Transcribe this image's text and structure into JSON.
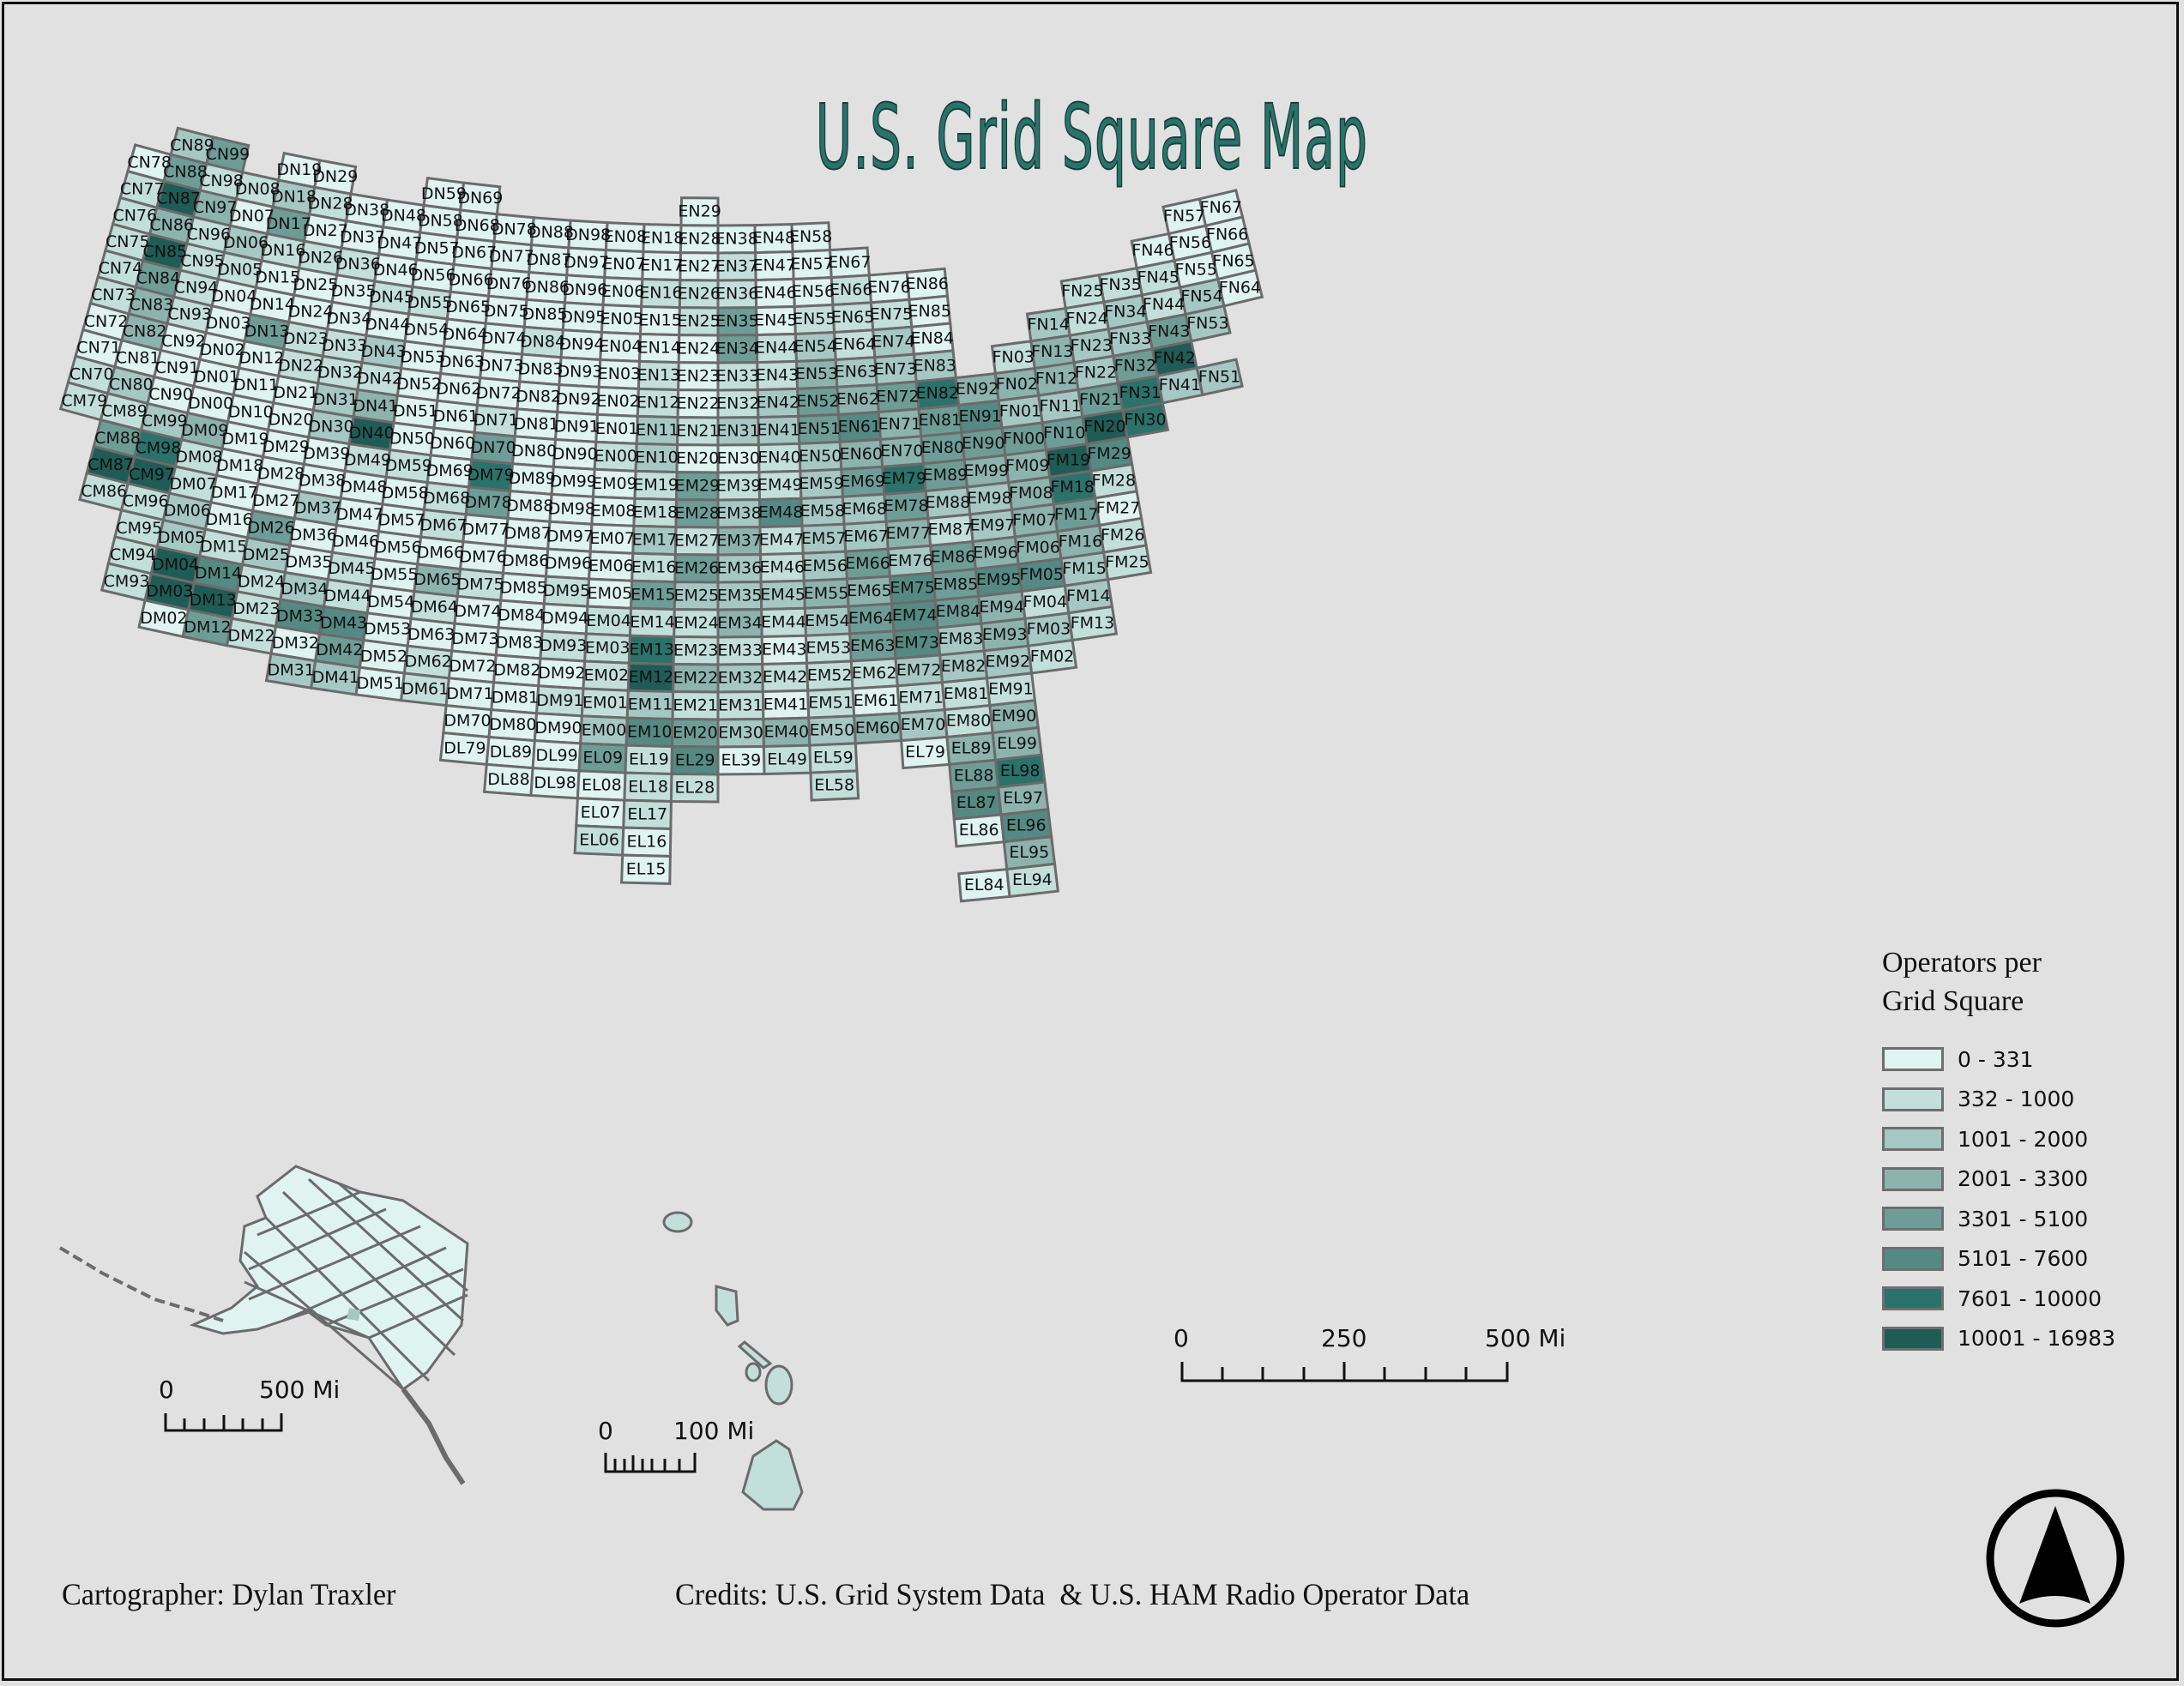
{
  "title": "U.S. Grid Square Map",
  "legend": {
    "title_line1": "Operators per",
    "title_line2": "Grid Square",
    "classes": [
      {
        "label": "0 - 331",
        "color": "#dff3f0"
      },
      {
        "label": "332 - 1000",
        "color": "#c3dfdb"
      },
      {
        "label": "1001 - 2000",
        "color": "#a6c8c4"
      },
      {
        "label": "2001 - 3300",
        "color": "#8db3ae"
      },
      {
        "label": "3301 - 5100",
        "color": "#6e9d97"
      },
      {
        "label": "5101 - 7600",
        "color": "#548a83"
      },
      {
        "label": "7601 - 10000",
        "color": "#2a726a"
      },
      {
        "label": "10001 - 16983",
        "color": "#1f5c56"
      }
    ]
  },
  "scale_bars": {
    "main": {
      "labels": [
        "0",
        "250",
        "500 Mi"
      ]
    },
    "alaska": {
      "labels": [
        "0",
        "500 Mi"
      ]
    },
    "hawaii": {
      "labels": [
        "0",
        "100 Mi"
      ]
    }
  },
  "credits": {
    "cartographer": "Cartographer: Dylan Traxler",
    "sources": "Credits: U.S. Grid System Data  & U.S. HAM Radio Operator Data"
  },
  "north_arrow": {
    "icon": "north-arrow-icon"
  },
  "chart_data": {
    "type": "heatmap",
    "title": "U.S. Grid Square Map",
    "legend_title": "Operators per Grid Square",
    "classes": [
      "0 - 331",
      "332 - 1000",
      "1001 - 2000",
      "2001 - 3300",
      "3301 - 5100",
      "5101 - 7600",
      "7601 - 10000",
      "10001 - 16983"
    ],
    "note": "value = class index (0-7) into classes for each Maidenhead grid square",
    "grid_squares": {
      "CN89": 2,
      "CN99": 4,
      "CN88": 4,
      "CN78": 0,
      "CN98": 1,
      "CN77": 1,
      "CN87": 7,
      "CN97": 3,
      "CN76": 1,
      "CN86": 3,
      "CN96": 1,
      "CN75": 1,
      "CN85": 7,
      "CN95": 1,
      "CN74": 1,
      "CN84": 4,
      "CN94": 1,
      "CN73": 1,
      "CN83": 3,
      "CN93": 1,
      "CN72": 0,
      "CN82": 3,
      "CN92": 0,
      "CN71": 0,
      "CN81": 0,
      "CN91": 0,
      "CN70": 1,
      "CN80": 2,
      "CN90": 0,
      "CM79": 1,
      "CM89": 1,
      "CM99": 2,
      "CM88": 4,
      "CM98": 6,
      "CM87": 7,
      "CM97": 7,
      "CM86": 1,
      "CM96": 1,
      "CM95": 1,
      "CM94": 1,
      "CM93": 1,
      "DN08": 1,
      "DN18": 2,
      "DN19": 0,
      "DN29": 0,
      "DN28": 1,
      "DN38": 0,
      "DN48": 0,
      "DN58": 0,
      "DN59": 0,
      "DN68": 0,
      "DN69": 0,
      "DN78": 0,
      "DN88": 0,
      "DN98": 0,
      "DN07": 0,
      "DN17": 4,
      "DN27": 0,
      "DN37": 0,
      "DN47": 0,
      "DN57": 0,
      "DN67": 0,
      "DN77": 0,
      "DN87": 0,
      "DN97": 0,
      "DN06": 2,
      "DN16": 1,
      "DN26": 1,
      "DN36": 1,
      "DN46": 0,
      "DN56": 0,
      "DN66": 0,
      "DN76": 0,
      "DN86": 0,
      "DN96": 0,
      "DN05": 1,
      "DN15": 0,
      "DN25": 0,
      "DN35": 0,
      "DN45": 1,
      "DN55": 1,
      "DN65": 0,
      "DN75": 0,
      "DN85": 0,
      "DN95": 0,
      "DN04": 0,
      "DN14": 0,
      "DN24": 0,
      "DN34": 0,
      "DN44": 0,
      "DN54": 0,
      "DN64": 0,
      "DN74": 0,
      "DN84": 1,
      "DN94": 0,
      "DN03": 0,
      "DN13": 4,
      "DN23": 1,
      "DN33": 1,
      "DN43": 2,
      "DN53": 0,
      "DN63": 0,
      "DN73": 0,
      "DN83": 0,
      "DN93": 0,
      "DN02": 0,
      "DN12": 0,
      "DN22": 1,
      "DN32": 1,
      "DN42": 1,
      "DN52": 0,
      "DN62": 0,
      "DN72": 0,
      "DN82": 0,
      "DN92": 0,
      "DN01": 0,
      "DN11": 0,
      "DN21": 0,
      "DN31": 2,
      "DN41": 3,
      "DN51": 0,
      "DN61": 0,
      "DN71": 1,
      "DN81": 0,
      "DN91": 0,
      "DN00": 0,
      "DN10": 0,
      "DN20": 0,
      "DN30": 2,
      "DN40": 7,
      "DN50": 0,
      "DN60": 0,
      "DN70": 4,
      "DN80": 0,
      "DN90": 0,
      "DM09": 3,
      "DM19": 0,
      "DM29": 0,
      "DM39": 0,
      "DM49": 1,
      "DM59": 1,
      "DM69": 0,
      "DM79": 6,
      "DM89": 0,
      "DM99": 0,
      "DM08": 1,
      "DM18": 0,
      "DM28": 0,
      "DM38": 0,
      "DM48": 0,
      "DM58": 0,
      "DM68": 1,
      "DM78": 4,
      "DM88": 0,
      "DM98": 0,
      "DM07": 1,
      "DM17": 0,
      "DM27": 0,
      "DM37": 2,
      "DM47": 0,
      "DM57": 0,
      "DM67": 1,
      "DM77": 0,
      "DM87": 0,
      "DM97": 0,
      "DM06": 2,
      "DM16": 0,
      "DM26": 4,
      "DM36": 0,
      "DM46": 0,
      "DM56": 0,
      "DM66": 0,
      "DM76": 0,
      "DM86": 0,
      "DM96": 0,
      "DM05": 2,
      "DM15": 1,
      "DM25": 2,
      "DM35": 0,
      "DM45": 1,
      "DM55": 0,
      "DM65": 3,
      "DM75": 1,
      "DM85": 0,
      "DM95": 1,
      "DM04": 7,
      "DM14": 5,
      "DM24": 1,
      "DM34": 2,
      "DM44": 1,
      "DM54": 0,
      "DM64": 1,
      "DM74": 0,
      "DM84": 0,
      "DM94": 0,
      "DM03": 7,
      "DM13": 7,
      "DM23": 1,
      "DM33": 5,
      "DM43": 5,
      "DM53": 0,
      "DM63": 0,
      "DM73": 0,
      "DM83": 0,
      "DM93": 1,
      "DM02": 0,
      "DM12": 4,
      "DM22": 1,
      "DM32": 0,
      "DM42": 4,
      "DM52": 0,
      "DM62": 1,
      "DM72": 0,
      "DM82": 0,
      "DM92": 0,
      "DM31": 2,
      "DM41": 2,
      "DM51": 0,
      "DM61": 1,
      "DM71": 0,
      "DM81": 0,
      "DM91": 1,
      "DM70": 0,
      "DM80": 0,
      "DM90": 0,
      "DL79": 0,
      "DL89": 0,
      "DL88": 0,
      "DL99": 0,
      "DL98": 0,
      "EN08": 0,
      "EN18": 0,
      "EN28": 0,
      "EN29": 0,
      "EN38": 0,
      "EN48": 0,
      "EN58": 0,
      "EN47": 0,
      "EN57": 0,
      "EN67": 0,
      "EN07": 0,
      "EN17": 0,
      "EN27": 0,
      "EN37": 1,
      "EN06": 0,
      "EN16": 1,
      "EN26": 1,
      "EN36": 1,
      "EN46": 0,
      "EN56": 0,
      "EN66": 1,
      "EN76": 0,
      "EN86": 0,
      "EN05": 0,
      "EN15": 0,
      "EN25": 1,
      "EN35": 4,
      "EN45": 0,
      "EN55": 1,
      "EN65": 1,
      "EN75": 1,
      "EN85": 0,
      "EN04": 0,
      "EN14": 0,
      "EN24": 0,
      "EN34": 4,
      "EN44": 1,
      "EN54": 2,
      "EN64": 1,
      "EN74": 2,
      "EN84": 0,
      "EN03": 0,
      "EN13": 1,
      "EN23": 0,
      "EN33": 1,
      "EN43": 1,
      "EN53": 3,
      "EN63": 2,
      "EN73": 2,
      "EN83": 2,
      "EN02": 0,
      "EN12": 1,
      "EN22": 0,
      "EN32": 1,
      "EN42": 2,
      "EN52": 4,
      "EN62": 3,
      "EN72": 4,
      "EN82": 6,
      "EN92": 3,
      "EN01": 0,
      "EN11": 2,
      "EN21": 1,
      "EN31": 2,
      "EN41": 2,
      "EN51": 4,
      "EN61": 5,
      "EN71": 3,
      "EN81": 4,
      "EN91": 5,
      "EN00": 1,
      "EN10": 2,
      "EN20": 0,
      "EN30": 0,
      "EN40": 1,
      "EN50": 2,
      "EN60": 3,
      "EN70": 3,
      "EN80": 4,
      "EN90": 4,
      "EM09": 0,
      "EM19": 1,
      "EM29": 4,
      "EM39": 1,
      "EM49": 1,
      "EM59": 2,
      "EM69": 4,
      "EM79": 6,
      "EM89": 4,
      "EM99": 3,
      "EM08": 0,
      "EM18": 1,
      "EM28": 4,
      "EM38": 2,
      "EM48": 5,
      "EM58": 2,
      "EM68": 2,
      "EM78": 4,
      "EM88": 2,
      "EM98": 2,
      "EM07": 0,
      "EM17": 2,
      "EM27": 1,
      "EM37": 3,
      "EM47": 1,
      "EM57": 2,
      "EM67": 2,
      "EM77": 3,
      "EM87": 1,
      "EM97": 2,
      "EM06": 0,
      "EM16": 1,
      "EM26": 4,
      "EM36": 2,
      "EM46": 1,
      "EM56": 2,
      "EM66": 4,
      "EM76": 2,
      "EM86": 4,
      "EM96": 3,
      "EM05": 0,
      "EM15": 4,
      "EM25": 2,
      "EM35": 2,
      "EM45": 2,
      "EM55": 3,
      "EM65": 3,
      "EM75": 5,
      "EM85": 4,
      "EM95": 5,
      "EM04": 1,
      "EM14": 1,
      "EM24": 1,
      "EM34": 3,
      "EM44": 1,
      "EM54": 2,
      "EM64": 4,
      "EM74": 5,
      "EM84": 4,
      "EM94": 3,
      "EM03": 1,
      "EM13": 6,
      "EM23": 1,
      "EM33": 1,
      "EM43": 0,
      "EM53": 1,
      "EM63": 4,
      "EM73": 5,
      "EM83": 2,
      "EM93": 3,
      "EM02": 1,
      "EM12": 7,
      "EM22": 3,
      "EM32": 2,
      "EM42": 1,
      "EM52": 1,
      "EM62": 1,
      "EM72": 2,
      "EM82": 2,
      "EM92": 2,
      "EM01": 1,
      "EM11": 2,
      "EM21": 1,
      "EM31": 1,
      "EM41": 0,
      "EM51": 1,
      "EM61": 0,
      "EM71": 1,
      "EM81": 1,
      "EM91": 1,
      "EM00": 2,
      "EM10": 5,
      "EM20": 4,
      "EM30": 2,
      "EM40": 3,
      "EM50": 2,
      "EM60": 3,
      "EM70": 2,
      "EM80": 1,
      "EM90": 3,
      "EL09": 4,
      "EL19": 1,
      "EL29": 5,
      "EL39": 0,
      "EL49": 1,
      "EL59": 1,
      "EL79": 0,
      "EL89": 3,
      "EL99": 3,
      "EL08": 0,
      "EL18": 1,
      "EL28": 1,
      "EL58": 1,
      "EL88": 4,
      "EL98": 6,
      "EL07": 0,
      "EL17": 1,
      "EL87": 5,
      "EL97": 3,
      "EL06": 1,
      "EL16": 0,
      "EL86": 0,
      "EL96": 5,
      "EL15": 0,
      "EL95": 3,
      "EL94": 1,
      "EL84": 0,
      "FN57": 0,
      "FN67": 0,
      "FN66": 0,
      "FN56": 0,
      "FN46": 0,
      "FN55": 0,
      "FN65": 0,
      "FN64": 0,
      "FN45": 1,
      "FN54": 2,
      "FN35": 1,
      "FN25": 1,
      "FN24": 1,
      "FN34": 2,
      "FN44": 1,
      "FN53": 2,
      "FN14": 2,
      "FN23": 2,
      "FN33": 2,
      "FN43": 4,
      "FN03": 1,
      "FN13": 3,
      "FN12": 3,
      "FN22": 2,
      "FN32": 4,
      "FN42": 7,
      "FN51": 2,
      "FN02": 3,
      "FN11": 2,
      "FN21": 4,
      "FN31": 6,
      "FN41": 2,
      "FN01": 2,
      "FN10": 4,
      "FN20": 7,
      "FN30": 6,
      "FN00": 4,
      "FM29": 5,
      "FM09": 3,
      "FM19": 7,
      "FM28": 1,
      "FM08": 3,
      "FM18": 6,
      "FM27": 0,
      "FM07": 3,
      "FM17": 4,
      "FM26": 1,
      "FM06": 3,
      "FM16": 3,
      "FM25": 1,
      "FM05": 5,
      "FM15": 2,
      "FM04": 1,
      "FM14": 2,
      "FM03": 2,
      "FM13": 1,
      "FM02": 1
    }
  }
}
